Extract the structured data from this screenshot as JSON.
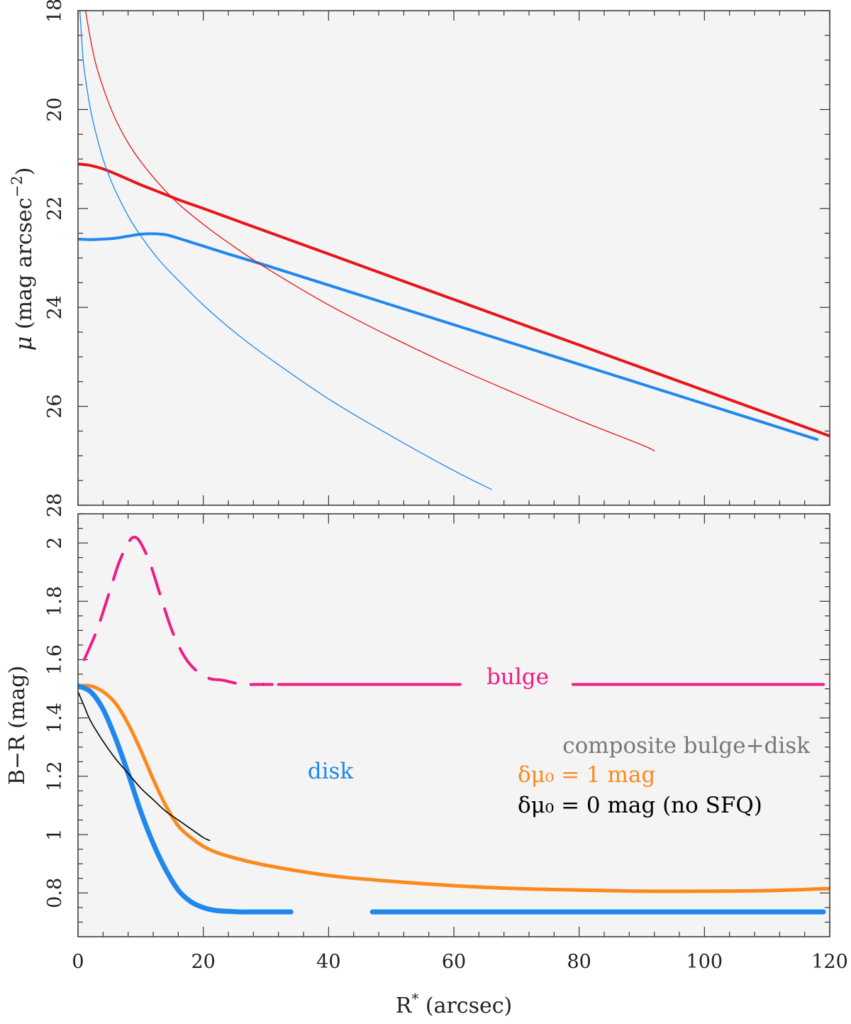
{
  "colors": {
    "panel_bg": "#f4f4f4",
    "frame": "#333333",
    "red": "#e8141b",
    "blue": "#1f88ec",
    "magenta": "#f01b84",
    "orange": "#fb8a1e",
    "black": "#000000",
    "grey": "#777777"
  },
  "chart_data": [
    {
      "type": "line",
      "panel": "top",
      "ylabel_main": "μ",
      "ylabel_rest": " (mag arcsec",
      "ylabel_sup": "−2",
      "ylabel_close": ")",
      "xlim": [
        0,
        120
      ],
      "ylim": [
        28,
        18
      ],
      "y_reversed": true,
      "yticks": [
        18,
        20,
        22,
        24,
        26,
        28
      ],
      "ytick_labels": [
        "18",
        "20",
        "22",
        "24",
        "26",
        "28"
      ],
      "series": [
        {
          "color": "red",
          "width": "thick",
          "x": [
            0,
            2,
            4,
            6,
            8,
            10,
            12,
            14,
            16,
            20,
            30,
            40,
            60,
            80,
            100,
            120
          ],
          "y": [
            21.1,
            21.13,
            21.2,
            21.3,
            21.41,
            21.52,
            21.62,
            21.72,
            21.82,
            22.0,
            22.46,
            22.92,
            23.84,
            24.76,
            25.68,
            26.6
          ]
        },
        {
          "color": "blue",
          "width": "thick",
          "x": [
            0,
            2,
            4,
            6,
            8,
            10,
            12,
            14,
            16,
            18,
            20,
            24,
            30,
            40,
            60,
            80,
            100,
            118
          ],
          "y": [
            22.62,
            22.63,
            22.62,
            22.6,
            22.56,
            22.52,
            22.51,
            22.53,
            22.6,
            22.68,
            22.76,
            22.92,
            23.15,
            23.55,
            24.35,
            25.15,
            25.95,
            26.67
          ]
        },
        {
          "color": "red",
          "width": "thin",
          "x": [
            1.2,
            2,
            3,
            5,
            7,
            10,
            15,
            20,
            25,
            30,
            40,
            50,
            60,
            70,
            80,
            90,
            92
          ],
          "y": [
            18.0,
            18.58,
            19.15,
            19.9,
            20.45,
            21.05,
            21.78,
            22.32,
            22.78,
            23.2,
            23.95,
            24.6,
            25.2,
            25.75,
            26.28,
            26.78,
            26.9
          ]
        },
        {
          "color": "blue",
          "width": "thin",
          "x": [
            0.3,
            0.7,
            1,
            2,
            3,
            4,
            5,
            6,
            8,
            10,
            13,
            16,
            20,
            25,
            30,
            40,
            50,
            60,
            66
          ],
          "y": [
            18.0,
            18.8,
            19.2,
            20.0,
            20.55,
            21.0,
            21.35,
            21.65,
            22.15,
            22.55,
            23.05,
            23.45,
            23.95,
            24.5,
            24.98,
            25.85,
            26.6,
            27.3,
            27.68
          ]
        }
      ]
    },
    {
      "type": "line",
      "panel": "bottom",
      "xlabel_main": "R",
      "xlabel_sup": "*",
      "xlabel_rest": " (arcsec)",
      "ylabel": "B−R (mag)",
      "xlim": [
        0,
        120
      ],
      "ylim": [
        0.65,
        2.1
      ],
      "xticks": [
        0,
        20,
        40,
        60,
        80,
        100,
        120
      ],
      "xtick_labels": [
        "0",
        "20",
        "40",
        "60",
        "80",
        "100",
        "120"
      ],
      "yticks": [
        0.8,
        1.0,
        1.2,
        1.4,
        1.6,
        1.8,
        2.0
      ],
      "ytick_labels": [
        "0.8",
        "1",
        "1.2",
        "1.4",
        "1.6",
        "1.8",
        "2"
      ],
      "series": [
        {
          "color": "magenta",
          "style": "dashed",
          "x": [
            1,
            3,
            5,
            6.5,
            8,
            9,
            10,
            11.5,
            13,
            15,
            17,
            19,
            21,
            23,
            25,
            27,
            29,
            31
          ],
          "y": [
            1.6,
            1.7,
            1.83,
            1.93,
            2.0,
            2.02,
            2.0,
            1.93,
            1.83,
            1.7,
            1.61,
            1.56,
            1.535,
            1.53,
            1.52,
            1.515,
            1.515,
            1.515
          ]
        },
        {
          "color": "magenta",
          "style": "solid-gap",
          "x": [
            32,
            61
          ],
          "y": [
            1.515,
            1.515
          ]
        },
        {
          "color": "magenta",
          "style": "solid-gap",
          "x": [
            79,
            119
          ],
          "y": [
            1.515,
            1.515
          ]
        },
        {
          "color": "orange",
          "style": "solid",
          "x": [
            0,
            2,
            4,
            6,
            8,
            10,
            12,
            14,
            16,
            18,
            20,
            22,
            25,
            30,
            40,
            50,
            60,
            70,
            80,
            90,
            100,
            110,
            120
          ],
          "y": [
            1.51,
            1.51,
            1.49,
            1.45,
            1.38,
            1.29,
            1.19,
            1.1,
            1.03,
            0.99,
            0.96,
            0.94,
            0.92,
            0.895,
            0.86,
            0.84,
            0.825,
            0.815,
            0.81,
            0.806,
            0.806,
            0.808,
            0.815
          ]
        },
        {
          "color": "blue",
          "style": "solid",
          "x": [
            0,
            2,
            4,
            6,
            8,
            10,
            12,
            14,
            16,
            18,
            20,
            22,
            24,
            26,
            28,
            34
          ],
          "y": [
            1.51,
            1.49,
            1.43,
            1.33,
            1.21,
            1.08,
            0.97,
            0.88,
            0.81,
            0.77,
            0.75,
            0.74,
            0.737,
            0.735,
            0.735,
            0.735
          ]
        },
        {
          "color": "blue",
          "style": "solid",
          "x": [
            47,
            119
          ],
          "y": [
            0.735,
            0.735
          ]
        },
        {
          "color": "black",
          "style": "solid",
          "x": [
            0,
            1,
            2,
            4,
            6,
            8,
            10,
            12,
            14,
            16,
            18,
            20,
            21
          ],
          "y": [
            1.49,
            1.44,
            1.39,
            1.32,
            1.26,
            1.21,
            1.16,
            1.12,
            1.08,
            1.05,
            1.02,
            0.99,
            0.98
          ]
        }
      ],
      "annotations": {
        "bulge": "bulge",
        "disk": "disk",
        "legend_title": "composite bulge+disk",
        "legend_orange": "δμ₀ = 1 mag",
        "legend_black": "δμ₀ = 0 mag (no SFQ)"
      }
    }
  ]
}
